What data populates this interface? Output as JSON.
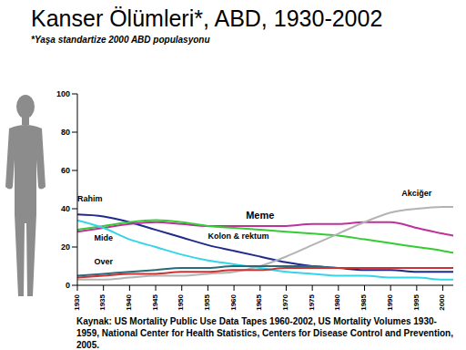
{
  "chart_data": {
    "type": "line",
    "title": "Kanser Ölümleri*, ABD, 1930-2002",
    "subtitle": "*Yaşa standartize 2000 ABD populasyonu",
    "source": "Kaynak:  US Mortality Public Use Data Tapes 1960-2002, US Mortality Volumes 1930-1959, National Center for Health Statistics, Centers for Disease Control and Prevention, 2005.",
    "x": [
      1930,
      1935,
      1940,
      1945,
      1950,
      1955,
      1960,
      1965,
      1970,
      1975,
      1980,
      1985,
      1990,
      1995,
      2000,
      2002
    ],
    "xlim": [
      1930,
      2002
    ],
    "xticks": [
      1930,
      1935,
      1940,
      1945,
      1950,
      1955,
      1960,
      1965,
      1970,
      1975,
      1980,
      1985,
      1990,
      1995,
      2000
    ],
    "ylim": [
      0,
      100
    ],
    "yticks": [
      0,
      20,
      40,
      60,
      80,
      100
    ],
    "grid": false,
    "series": [
      {
        "name": "Rahim",
        "color": "#1f2a8c",
        "values": [
          37,
          36,
          33,
          29,
          25,
          21,
          18,
          15,
          12,
          10,
          9,
          8,
          8,
          7,
          7,
          7
        ]
      },
      {
        "name": "Meme",
        "color": "#c0309c",
        "values": [
          28,
          30,
          32,
          33,
          32,
          31,
          31,
          31,
          31,
          32,
          32,
          33,
          33,
          30,
          27,
          26
        ]
      },
      {
        "name": "Kolon & rektum",
        "color": "#33cc33",
        "values": [
          29,
          31,
          33,
          34,
          33,
          31,
          30,
          29,
          28,
          27,
          26,
          24,
          22,
          20,
          18,
          17
        ]
      },
      {
        "name": "Mide",
        "color": "#33d6e6",
        "values": [
          34,
          30,
          24,
          20,
          16,
          13,
          11,
          9,
          7,
          6,
          5,
          5,
          4,
          4,
          3,
          3
        ]
      },
      {
        "name": "Akciğer",
        "color": "#b3b3b3",
        "values": [
          3,
          3,
          4,
          5,
          5,
          6,
          7,
          10,
          15,
          21,
          27,
          33,
          38,
          40,
          41,
          41
        ]
      },
      {
        "name": "Over",
        "color": "#2a6a7a",
        "values": [
          5,
          6,
          7,
          8,
          9,
          9,
          10,
          10,
          10,
          10,
          9,
          9,
          9,
          9,
          9,
          9
        ]
      },
      {
        "color": "#cc3333",
        "values": [
          4,
          5,
          6,
          6,
          7,
          7,
          8,
          8,
          9,
          9,
          9,
          9,
          9,
          9,
          9,
          9
        ]
      }
    ]
  }
}
